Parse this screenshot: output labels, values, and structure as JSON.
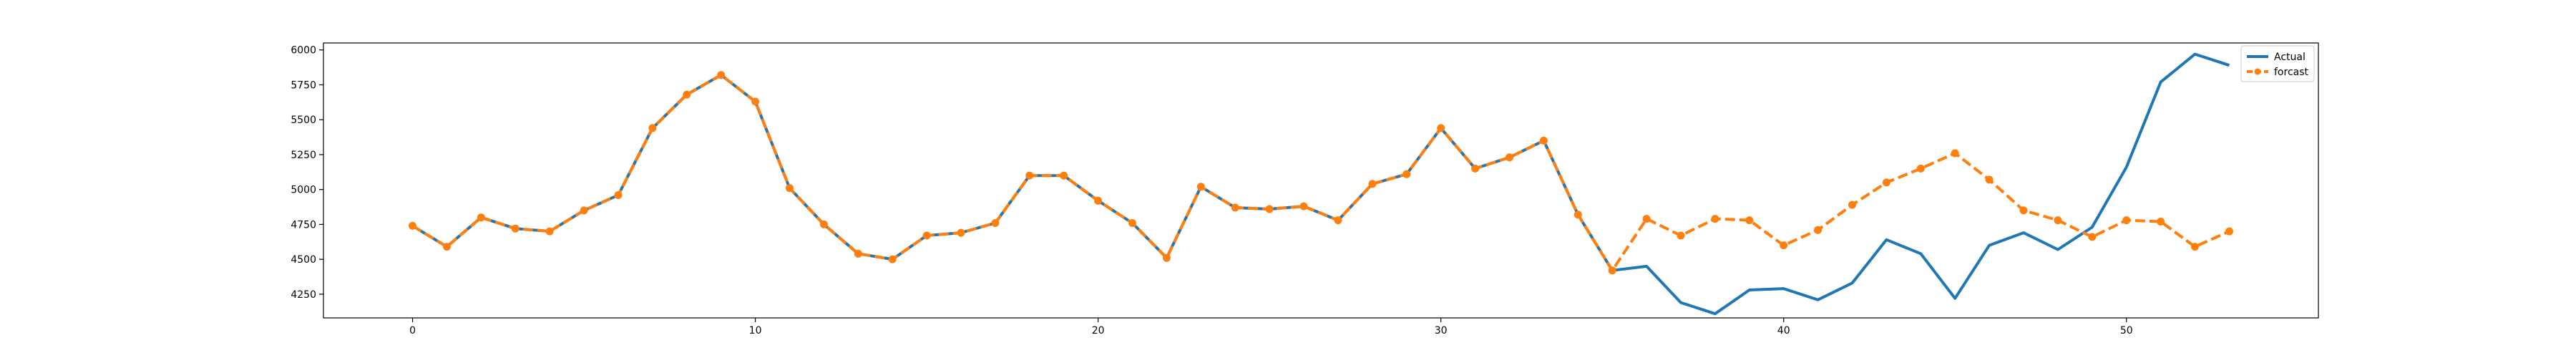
{
  "chart_data": {
    "type": "line",
    "title": "",
    "xlabel": "",
    "ylabel": "",
    "xlim": [
      -2.6,
      55.6
    ],
    "ylim": [
      4080,
      6050
    ],
    "grid": false,
    "legend_position": "top-right",
    "xticks": [
      0,
      10,
      20,
      30,
      40,
      50
    ],
    "yticks": [
      4250,
      4500,
      4750,
      5000,
      5250,
      5500,
      5750,
      6000
    ],
    "series": [
      {
        "name": "Actual",
        "color": "#1f77b4",
        "style": "solid",
        "marker": "none",
        "x": [
          0,
          1,
          2,
          3,
          4,
          5,
          6,
          7,
          8,
          9,
          10,
          11,
          12,
          13,
          14,
          15,
          16,
          17,
          18,
          19,
          20,
          21,
          22,
          23,
          24,
          25,
          26,
          27,
          28,
          29,
          30,
          31,
          32,
          33,
          34,
          35,
          36,
          37,
          38,
          39,
          40,
          41,
          42,
          43,
          44,
          45,
          46,
          47,
          48,
          49,
          50,
          51,
          52,
          53
        ],
        "values": [
          4740,
          4590,
          4800,
          4720,
          4700,
          4850,
          4960,
          5440,
          5680,
          5820,
          5630,
          5010,
          4750,
          4540,
          4500,
          4670,
          4690,
          4760,
          5100,
          5100,
          4920,
          4760,
          4510,
          5020,
          4870,
          4860,
          4880,
          4780,
          5040,
          5110,
          5440,
          5150,
          5230,
          5350,
          4820,
          4420,
          4450,
          4190,
          4110,
          4280,
          4290,
          4210,
          4330,
          4640,
          4540,
          4220,
          4600,
          4690,
          4570,
          4730,
          5160,
          5770,
          5970,
          5890
        ]
      },
      {
        "name": "forcast",
        "color": "#ff7f0e",
        "style": "dashed",
        "marker": "circle",
        "x": [
          0,
          1,
          2,
          3,
          4,
          5,
          6,
          7,
          8,
          9,
          10,
          11,
          12,
          13,
          14,
          15,
          16,
          17,
          18,
          19,
          20,
          21,
          22,
          23,
          24,
          25,
          26,
          27,
          28,
          29,
          30,
          31,
          32,
          33,
          34,
          35,
          36,
          37,
          38,
          39,
          40,
          41,
          42,
          43,
          44,
          45,
          46,
          47,
          48,
          49,
          50,
          51,
          52,
          53
        ],
        "values": [
          4740,
          4590,
          4800,
          4720,
          4700,
          4850,
          4960,
          5440,
          5680,
          5820,
          5630,
          5010,
          4750,
          4540,
          4500,
          4670,
          4690,
          4760,
          5100,
          5100,
          4920,
          4760,
          4510,
          5020,
          4870,
          4860,
          4880,
          4780,
          5040,
          5110,
          5440,
          5150,
          5230,
          5350,
          4820,
          4420,
          4790,
          4670,
          4790,
          4780,
          4600,
          4710,
          4890,
          5050,
          5150,
          5260,
          5070,
          4850,
          4780,
          4660,
          4780,
          4770,
          4590,
          4700
        ]
      }
    ]
  }
}
